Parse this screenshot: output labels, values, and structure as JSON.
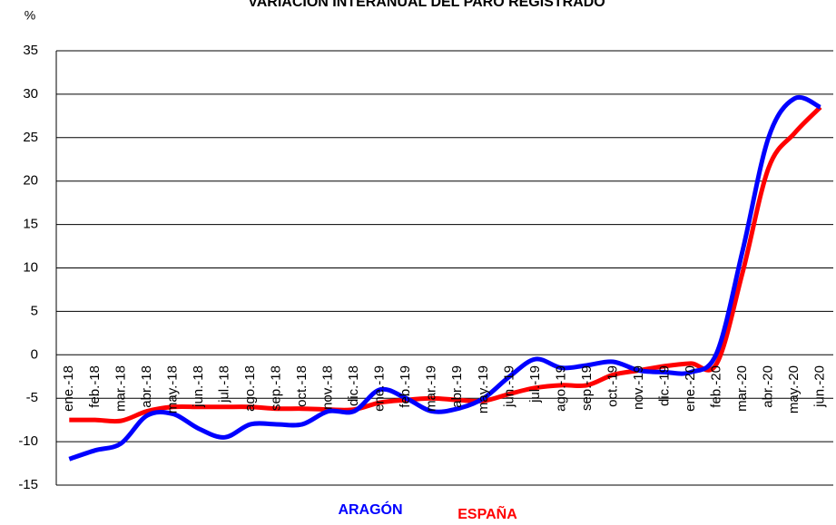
{
  "chart_data": {
    "type": "line",
    "title": "VARIACIÓN INTERANUAL DEL PARO REGISTRADO",
    "y_label": "%",
    "categories": [
      "ene.-18",
      "feb.-18",
      "mar.-18",
      "abr.-18",
      "may.-18",
      "jun.-18",
      "jul.-18",
      "ago.-18",
      "sep.-18",
      "oct.-18",
      "nov.-18",
      "dic.-18",
      "ene.-19",
      "feb.-19",
      "mar.-19",
      "abr.-19",
      "may.-19",
      "jun.-19",
      "jul.-19",
      "ago.-19",
      "sep.-19",
      "oct.-19",
      "nov.-19",
      "dic.-19",
      "ene.-20",
      "feb.-20",
      "mar.-20",
      "abr.-20",
      "may.-20",
      "jun.-20"
    ],
    "series": [
      {
        "name": "ARAGÓN",
        "color": "#0000ff",
        "values": [
          -12,
          -11,
          -10.2,
          -7,
          -6.8,
          -8.5,
          -9.5,
          -8,
          -8,
          -8,
          -6.5,
          -6.5,
          -4,
          -5,
          -6.5,
          -6.2,
          -5,
          -2.5,
          -0.5,
          -1.5,
          -1.2,
          -0.8,
          -1.8,
          -2,
          -2,
          0.2,
          12,
          25,
          29.5,
          28.5
        ]
      },
      {
        "name": "ESPAÑA",
        "color": "#ff0000",
        "values": [
          -7.5,
          -7.5,
          -7.6,
          -6.5,
          -6,
          -6,
          -6,
          -6,
          -6.2,
          -6.2,
          -6.3,
          -6.3,
          -5.5,
          -5.2,
          -5,
          -5.2,
          -5.3,
          -4.5,
          -3.8,
          -3.5,
          -3.5,
          -2.3,
          -1.8,
          -1.3,
          -1,
          -1,
          9.5,
          21.5,
          25.5,
          28.5
        ]
      }
    ],
    "ylim": [
      -15,
      35
    ],
    "yticks": [
      -15,
      -10,
      -5,
      0,
      5,
      10,
      15,
      20,
      25,
      30,
      35
    ],
    "grid": true,
    "legend": "bottom"
  }
}
